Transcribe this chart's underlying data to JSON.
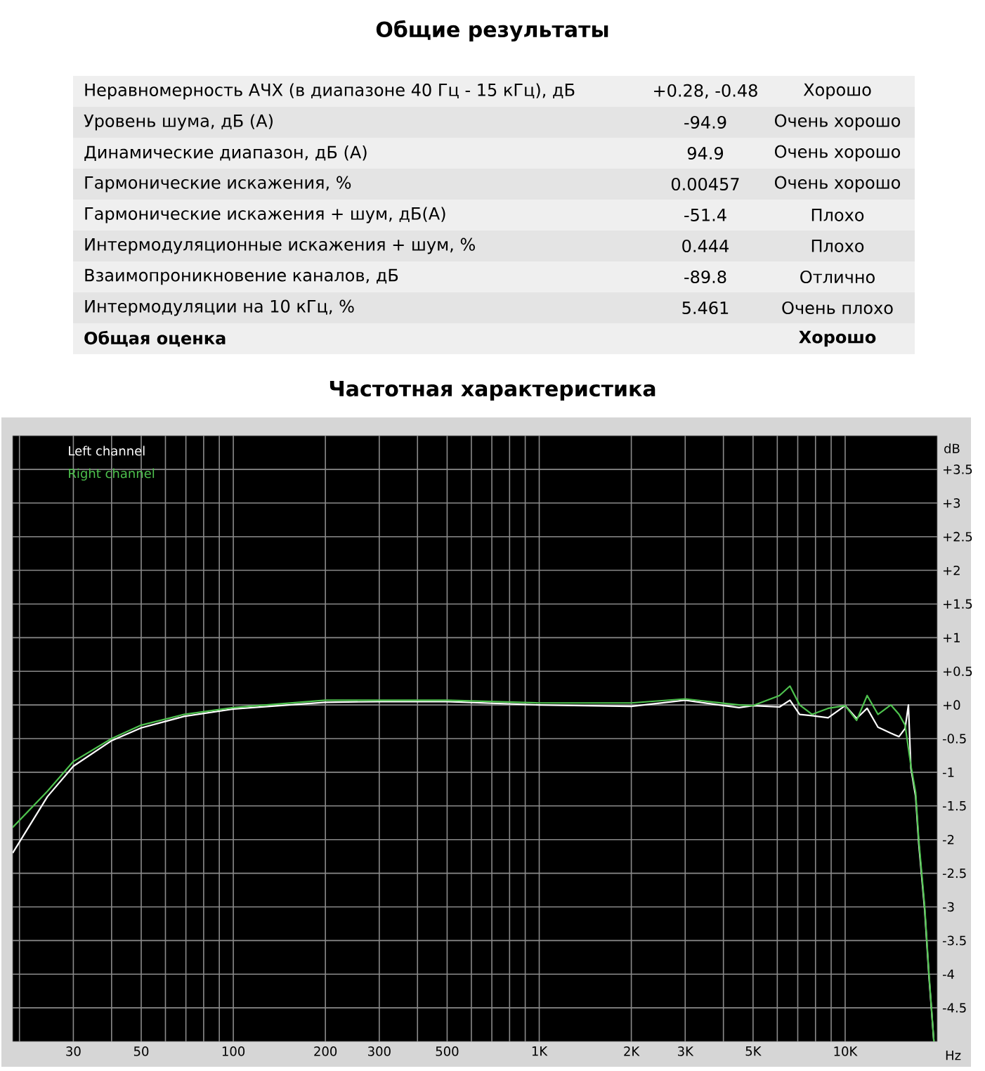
{
  "chart_data": [
    {
      "type": "other",
      "title": "Общие результаты",
      "categories": [
        "Неравномерность АЧХ (в диапазоне 40 Гц - 15 кГц), дБ",
        "Уровень шума, дБ (А)",
        "Динамические диапазон, дБ (А)",
        "Гармонические искажения, %",
        "Гармонические искажения + шум, дБ(А)",
        "Интермодуляционные искажения + шум, %",
        "Взаимопроникновение каналов, дБ",
        "Интермодуляции на 10 кГц, %",
        "Общая оценка"
      ],
      "value_labels": [
        "+0.28, -0.48",
        "-94.9",
        "94.9",
        "0.00457",
        "-51.4",
        "0.444",
        "-89.8",
        "5.461",
        null
      ],
      "annotations": [
        "Хорошо",
        "Очень хорошо",
        "Очень хорошо",
        "Очень хорошо",
        "Плохо",
        "Плохо",
        "Отлично",
        "Очень плохо",
        "Хорошо"
      ]
    },
    {
      "type": "line",
      "title": "Частотная характеристика",
      "xlabel": "Hz",
      "ylabel": "dB",
      "log": "x",
      "grid": true,
      "legend": "top left",
      "xlim": [
        19,
        20000
      ],
      "ylim": [
        -5,
        4
      ],
      "xticks": [
        {
          "value": 20,
          "label": null
        },
        30,
        {
          "value": 40,
          "label": null
        },
        50,
        {
          "value": 60,
          "label": null
        },
        {
          "value": 70,
          "label": null
        },
        {
          "value": 80,
          "label": null
        },
        {
          "value": 90,
          "label": null
        },
        100,
        200,
        300,
        {
          "value": 400,
          "label": null
        },
        500,
        {
          "value": 600,
          "label": null
        },
        {
          "value": 700,
          "label": null
        },
        {
          "value": 800,
          "label": null
        },
        {
          "value": 900,
          "label": null
        },
        {
          "value": 1000,
          "label": "1K"
        },
        {
          "value": 2000,
          "label": "2K"
        },
        {
          "value": 3000,
          "label": "3K"
        },
        {
          "value": 4000,
          "label": null
        },
        {
          "value": 5000,
          "label": "5K"
        },
        {
          "value": 6000,
          "label": null
        },
        {
          "value": 7000,
          "label": null
        },
        {
          "value": 8000,
          "label": null
        },
        {
          "value": 9000,
          "label": null
        },
        {
          "value": 10000,
          "label": "10K"
        }
      ],
      "yticks": [
        -4.5,
        -4,
        -3.5,
        -3,
        -2.5,
        -2,
        -1.5,
        -1,
        -0.5,
        {
          "value": 0,
          "label": "+0"
        },
        {
          "value": 0.5,
          "label": "+0.5"
        },
        {
          "value": 1,
          "label": "+1"
        },
        {
          "value": 1.5,
          "label": "+1.5"
        },
        {
          "value": 2,
          "label": "+2"
        },
        {
          "value": 2.5,
          "label": "+2.5"
        },
        {
          "value": 3,
          "label": "+3"
        },
        {
          "value": 3.5,
          "label": "+3.5"
        }
      ],
      "series": [
        {
          "name": "Left channel",
          "color": "#ffffff",
          "x": [
            19,
            24.7,
            30,
            40,
            50,
            69,
            100,
            200,
            300,
            500,
            1000,
            2000,
            3000,
            4500,
            5000,
            6100,
            6600,
            7100,
            7800,
            8800,
            10000,
            10900,
            11800,
            12800,
            14100,
            15000,
            15700,
            16100,
            16400,
            17000,
            17400,
            18200,
            18800,
            19500
          ],
          "values": [
            -2.2,
            -1.36,
            -0.91,
            -0.53,
            -0.34,
            -0.17,
            -0.06,
            0.04,
            0.05,
            0.05,
            0,
            -0.02,
            0.07,
            -0.04,
            -0.01,
            -0.03,
            0.07,
            -0.14,
            -0.16,
            -0.19,
            -0.01,
            -0.2,
            -0.05,
            -0.33,
            -0.42,
            -0.47,
            -0.35,
            0,
            -0.94,
            -1.36,
            -2.06,
            -3.05,
            -4.04,
            -5
          ]
        },
        {
          "name": "Right channel",
          "color": "#4ec24e",
          "x": [
            19,
            24.7,
            30,
            40,
            50,
            69,
            100,
            200,
            300,
            500,
            1000,
            2000,
            3000,
            4500,
            5000,
            6100,
            6600,
            7100,
            7800,
            8800,
            10000,
            10900,
            11800,
            12800,
            14100,
            15000,
            15700,
            16400,
            17000,
            17400,
            18200,
            18800,
            19500
          ],
          "values": [
            -1.82,
            -1.28,
            -0.84,
            -0.5,
            -0.3,
            -0.14,
            -0.04,
            0.07,
            0.07,
            0.07,
            0.03,
            0.03,
            0.09,
            0,
            -0.01,
            0.14,
            0.28,
            0,
            -0.14,
            -0.05,
            -0.01,
            -0.23,
            0.14,
            -0.14,
            0,
            -0.14,
            -0.3,
            -0.9,
            -1.3,
            -2.0,
            -3.0,
            -4.0,
            -5
          ]
        }
      ]
    }
  ]
}
